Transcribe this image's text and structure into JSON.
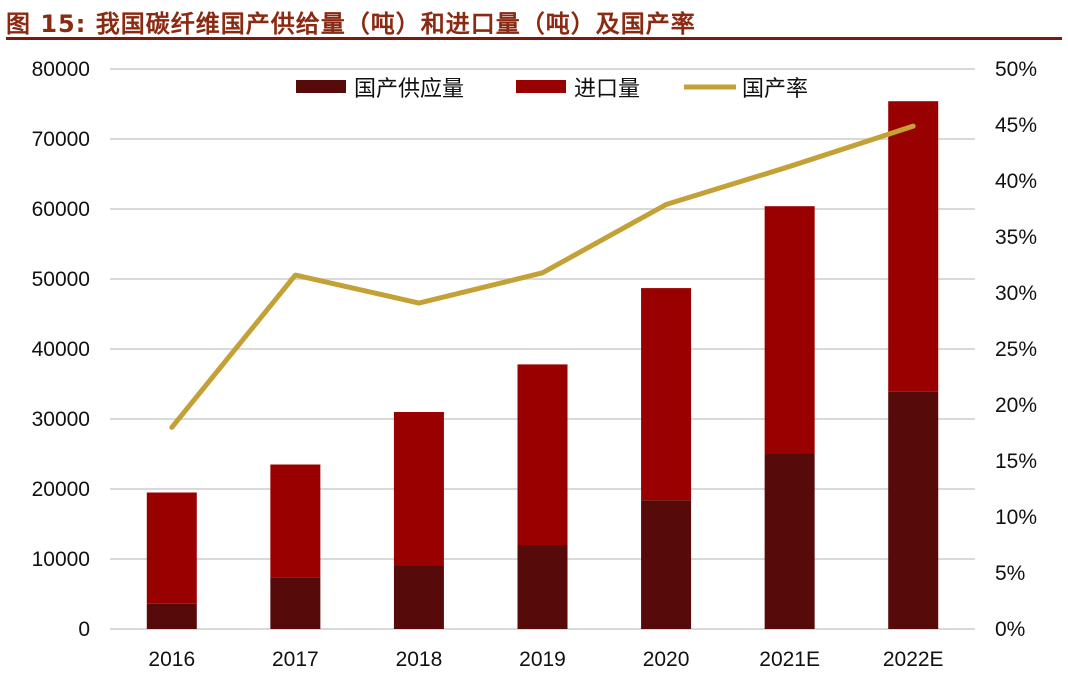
{
  "title": "图 15:  我国碳纤维国产供给量（吨）和进口量（吨）及国产率",
  "chart_data": {
    "type": "bar",
    "stacked": true,
    "title": "图 15:  我国碳纤维国产供给量（吨）和进口量（吨）及国产率",
    "categories": [
      "2016",
      "2017",
      "2018",
      "2019",
      "2020",
      "2021E",
      "2022E"
    ],
    "series": [
      {
        "name": "国产供应量",
        "type": "bar",
        "axis": "left",
        "color": "#560a0a",
        "values": [
          3600,
          7400,
          9000,
          12000,
          18400,
          25000,
          33900
        ]
      },
      {
        "name": "进口量",
        "type": "bar",
        "axis": "left",
        "color": "#990000",
        "values": [
          15900,
          16100,
          22000,
          25800,
          30300,
          35400,
          41500
        ]
      },
      {
        "name": "国产率",
        "type": "line",
        "axis": "right",
        "color": "#c4a137",
        "values": [
          18.0,
          31.6,
          29.1,
          31.8,
          37.9,
          41.3,
          44.9
        ]
      }
    ],
    "ylim": [
      0,
      80000
    ],
    "yticks": [
      "0",
      "10000",
      "20000",
      "30000",
      "40000",
      "50000",
      "60000",
      "70000",
      "80000"
    ],
    "y2lim": [
      0,
      50
    ],
    "y2ticks": [
      "0%",
      "5%",
      "10%",
      "15%",
      "20%",
      "25%",
      "30%",
      "35%",
      "40%",
      "45%",
      "50%"
    ],
    "grid": true,
    "legend": "top-center"
  }
}
